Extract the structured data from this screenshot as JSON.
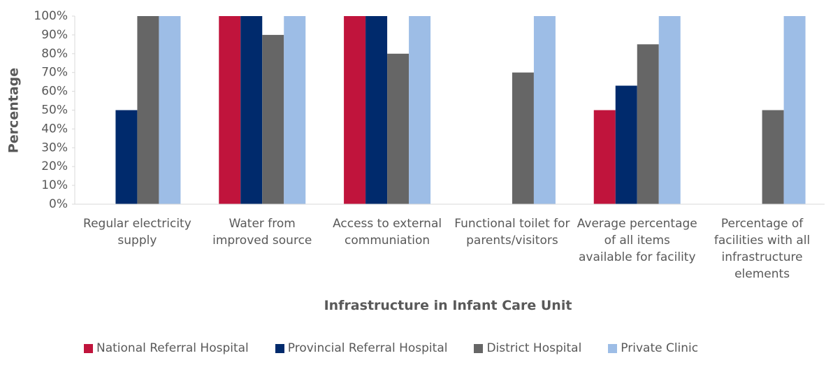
{
  "chart_data": {
    "type": "bar",
    "x_label": "Infrastructure in Infant Care Unit",
    "y_label": "Percentage",
    "categories": [
      "Regular electricity supply",
      "Water from improved source",
      "Access to external communiation",
      "Functional toilet for parents/visitors",
      "Average percentage of all items available for facility",
      "Percentage of facilities with all infrastructure elements"
    ],
    "series": [
      {
        "name": "National Referral Hospital",
        "color": "#c0143c",
        "values": [
          0,
          100,
          100,
          0,
          50,
          0
        ]
      },
      {
        "name": "Provincial Referral Hospital",
        "color": "#002a6c",
        "values": [
          50,
          100,
          100,
          0,
          63,
          0
        ]
      },
      {
        "name": "District Hospital",
        "color": "#666666",
        "values": [
          100,
          90,
          80,
          70,
          85,
          50
        ]
      },
      {
        "name": "Private Clinic",
        "color": "#9dbde6",
        "values": [
          100,
          100,
          100,
          100,
          100,
          100
        ]
      }
    ],
    "ylim": [
      0,
      100
    ],
    "yticks": [
      {
        "value": 0,
        "label": "0%"
      },
      {
        "value": 10,
        "label": "10%"
      },
      {
        "value": 20,
        "label": "20%"
      },
      {
        "value": 30,
        "label": "30%"
      },
      {
        "value": 40,
        "label": "40%"
      },
      {
        "value": 50,
        "label": "50%"
      },
      {
        "value": 60,
        "label": "60%"
      },
      {
        "value": 70,
        "label": "70%"
      },
      {
        "value": 80,
        "label": "80%"
      },
      {
        "value": 90,
        "label": "90%"
      },
      {
        "value": 100,
        "label": "100%"
      }
    ],
    "legend": "bottom"
  }
}
